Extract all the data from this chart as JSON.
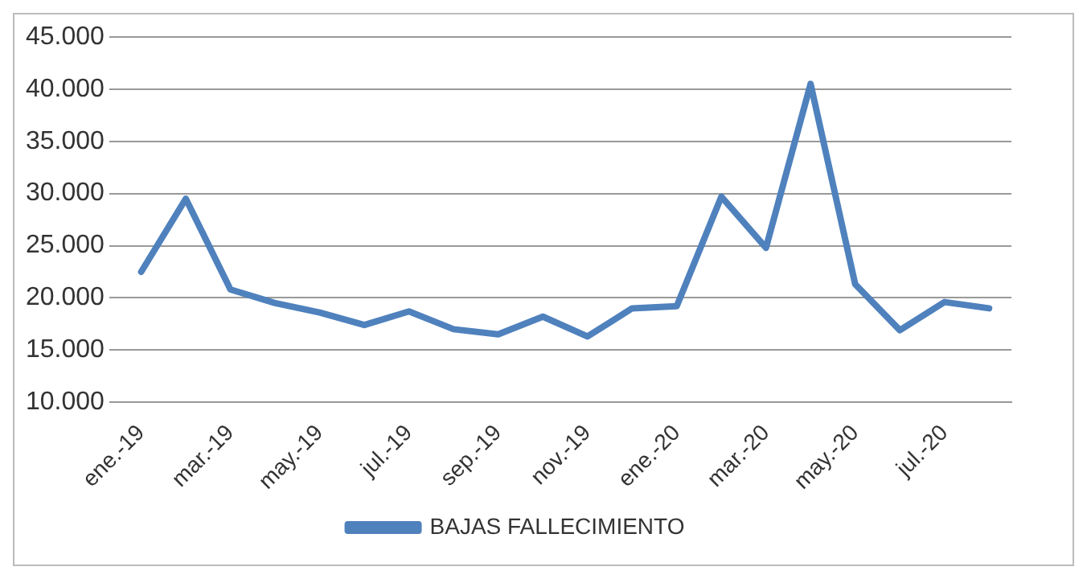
{
  "chart_data": {
    "type": "line",
    "categories": [
      "ene.-19",
      null,
      "mar.-19",
      null,
      "may.-19",
      null,
      "jul.-19",
      null,
      "sep.-19",
      null,
      "nov.-19",
      null,
      "ene.-20",
      null,
      "mar.-20",
      null,
      "may.-20",
      null,
      "jul.-20",
      null
    ],
    "series": [
      {
        "name": "BAJAS FALLECIMIENTO",
        "color": "#4f81bd",
        "values": [
          22500,
          29500,
          20800,
          19500,
          18600,
          17400,
          18700,
          17000,
          16500,
          18200,
          16300,
          19000,
          19200,
          29700,
          24800,
          40500,
          21300,
          16900,
          19600,
          19000
        ]
      }
    ],
    "ylim": [
      10000,
      45000
    ],
    "yticks": [
      {
        "value": 10000,
        "label": "10.000"
      },
      {
        "value": 15000,
        "label": "15.000"
      },
      {
        "value": 20000,
        "label": "20.000"
      },
      {
        "value": 25000,
        "label": "25.000"
      },
      {
        "value": 30000,
        "label": "30.000"
      },
      {
        "value": 35000,
        "label": "35.000"
      },
      {
        "value": 40000,
        "label": "40.000"
      },
      {
        "value": 45000,
        "label": "45.000"
      }
    ],
    "grid": "y",
    "legend": "bottom",
    "marker": "none",
    "line_style": "solid"
  }
}
